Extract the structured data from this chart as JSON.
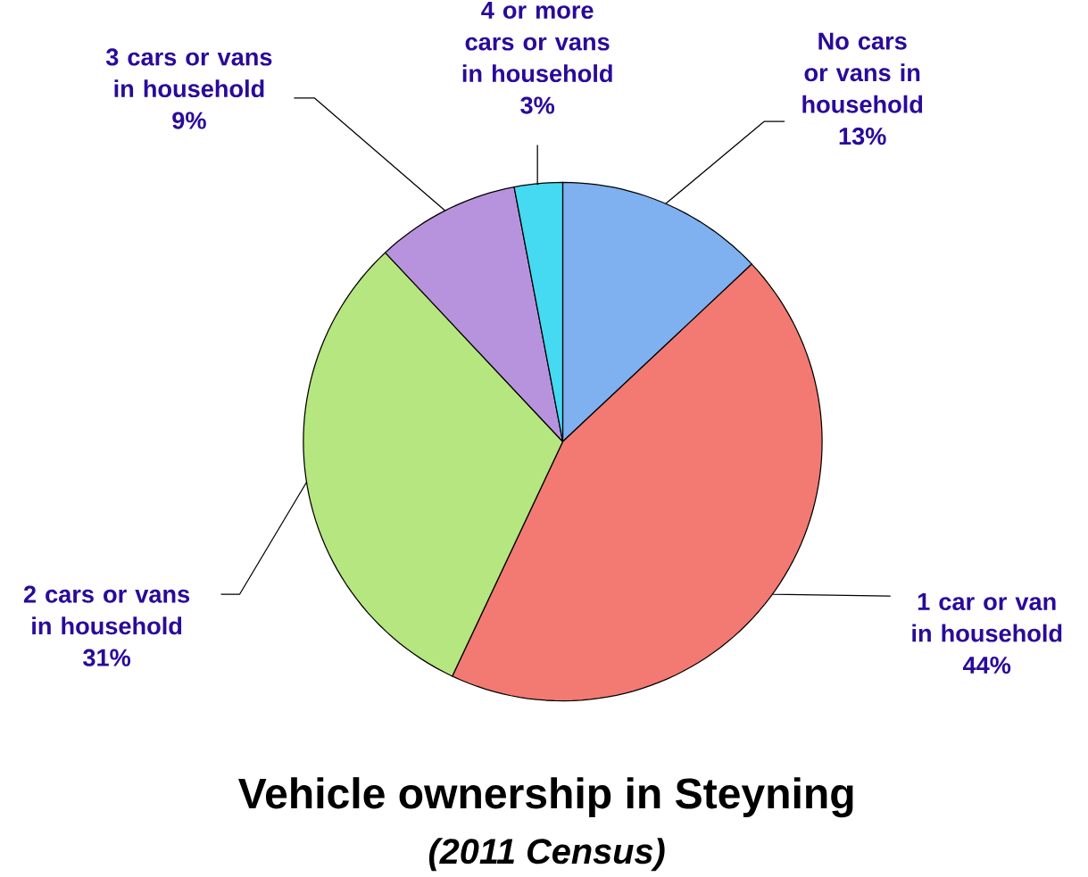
{
  "chart_data": {
    "type": "pie",
    "title": "Vehicle ownership in Steyning",
    "subtitle": "(2011 Census)",
    "categories": [
      "No cars or vans in household",
      "1 car or van in household",
      "2 cars or vans in household",
      "3 cars or vans in household",
      "4 or more cars or vans in household"
    ],
    "values": [
      13,
      44,
      31,
      9,
      3
    ],
    "value_labels": [
      "13%",
      "44%",
      "31%",
      "9%",
      "3%"
    ],
    "colors": [
      "#7fb0f0",
      "#f27a72",
      "#b6e67f",
      "#b893dd",
      "#45d9f2"
    ]
  }
}
